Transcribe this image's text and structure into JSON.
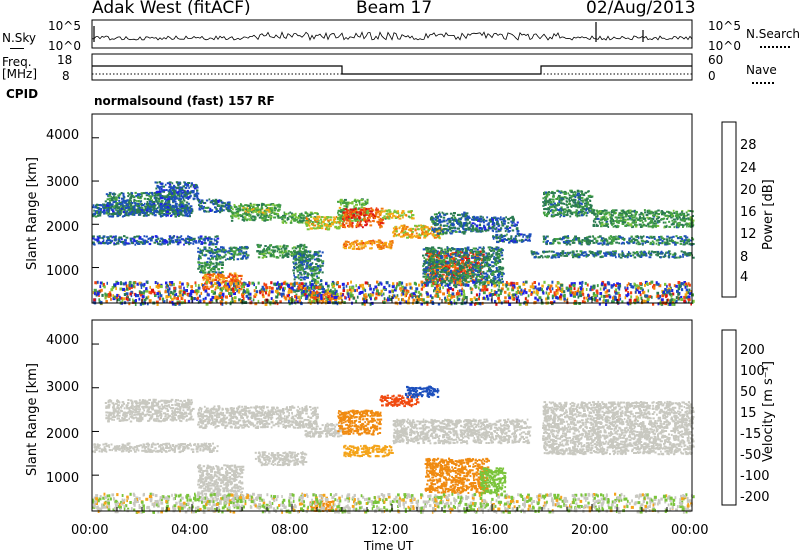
{
  "header": {
    "radar": "Adak West (fitACF)",
    "beam": "Beam 17",
    "date": "02/Aug/2013"
  },
  "noise_panel": {
    "left_label": "N.Sky",
    "right_label": "N.Search",
    "left_ticks": [
      "10^5",
      "10^0"
    ],
    "right_ticks": [
      "10^5",
      "10^0"
    ]
  },
  "freq_panel": {
    "left_label_1": "Freq.",
    "left_label_2": "[MHz]",
    "right_label": "Nave",
    "left_ticks": [
      "18",
      "8"
    ],
    "right_ticks": [
      "60",
      "0"
    ],
    "cpid_label": "CPID",
    "cpid_text": "normalsound (fast) 157 RF"
  },
  "colors": {
    "power": [
      "#1f1fe6",
      "#1c4fbd",
      "#2a7a52",
      "#43a043",
      "#7ac43a",
      "#f4aa14",
      "#f07a0c",
      "#f04010",
      "#dd1010"
    ],
    "velocity": [
      "#e01010",
      "#f04a10",
      "#f08a10",
      "#f4a41a",
      "#c8c8c0",
      "#c8c8c0",
      "#7ac43a",
      "#2a8a4a",
      "#1c4fbd",
      "#1a2adb"
    ]
  },
  "chart_data": [
    {
      "type": "heatmap",
      "panel": "power",
      "ylabel": "Slant Range [km]",
      "ylim": [
        180,
        4550
      ],
      "y_ticks": [
        "4000",
        "3000",
        "2000",
        "1000"
      ],
      "colorbar": {
        "label": "Power [dB]",
        "range": [
          0,
          32
        ],
        "ticks": [
          "28",
          "24",
          "20",
          "16",
          "12",
          "8",
          "4"
        ]
      },
      "regions": [
        {
          "x": [
            0.5,
            3.8
          ],
          "y": [
            2250,
            2750
          ],
          "value": 9
        },
        {
          "x": [
            0.0,
            5.0
          ],
          "y": [
            1550,
            1750
          ],
          "value": 6
        },
        {
          "x": [
            0.0,
            4.0
          ],
          "y": [
            2200,
            2500
          ],
          "value": 7
        },
        {
          "x": [
            2.5,
            4.2
          ],
          "y": [
            2600,
            3000
          ],
          "value": 6
        },
        {
          "x": [
            4.2,
            5.5
          ],
          "y": [
            2300,
            2600
          ],
          "value": 7
        },
        {
          "x": [
            5.5,
            7.5
          ],
          "y": [
            2100,
            2500
          ],
          "value": 12
        },
        {
          "x": [
            6.0,
            7.2
          ],
          "y": [
            2250,
            2400
          ],
          "value": 16
        },
        {
          "x": [
            7.5,
            9.0
          ],
          "y": [
            2050,
            2300
          ],
          "value": 13
        },
        {
          "x": [
            8.5,
            10.0
          ],
          "y": [
            1900,
            2200
          ],
          "value": 18
        },
        {
          "x": [
            9.8,
            11.0
          ],
          "y": [
            2100,
            2600
          ],
          "value": 14
        },
        {
          "x": [
            10.0,
            11.6
          ],
          "y": [
            1950,
            2400
          ],
          "value": 26
        },
        {
          "x": [
            11.5,
            12.8
          ],
          "y": [
            2150,
            2350
          ],
          "value": 18
        },
        {
          "x": [
            10.0,
            12.0
          ],
          "y": [
            1450,
            1650
          ],
          "value": 22
        },
        {
          "x": [
            12.0,
            14.0
          ],
          "y": [
            1700,
            2000
          ],
          "value": 20
        },
        {
          "x": [
            13.5,
            15.0
          ],
          "y": [
            1800,
            2300
          ],
          "value": 8
        },
        {
          "x": [
            15.0,
            17.0
          ],
          "y": [
            1850,
            2200
          ],
          "value": 7
        },
        {
          "x": [
            16.0,
            17.5
          ],
          "y": [
            1600,
            1800
          ],
          "value": 7
        },
        {
          "x": [
            18.0,
            20.0
          ],
          "y": [
            2200,
            2800
          ],
          "value": 10
        },
        {
          "x": [
            20.0,
            24.0
          ],
          "y": [
            1950,
            2350
          ],
          "value": 11
        },
        {
          "x": [
            18.0,
            24.0
          ],
          "y": [
            1550,
            1750
          ],
          "value": 9
        },
        {
          "x": [
            17.5,
            24.0
          ],
          "y": [
            1250,
            1400
          ],
          "value": 8
        },
        {
          "x": [
            4.2,
            6.2
          ],
          "y": [
            1200,
            1500
          ],
          "value": 9
        },
        {
          "x": [
            6.5,
            8.5
          ],
          "y": [
            1250,
            1550
          ],
          "value": 11
        },
        {
          "x": [
            4.4,
            6.0
          ],
          "y": [
            500,
            900
          ],
          "value": 24
        },
        {
          "x": [
            4.2,
            5.2
          ],
          "y": [
            900,
            1150
          ],
          "value": 10
        },
        {
          "x": [
            8.0,
            9.2
          ],
          "y": [
            400,
            1400
          ],
          "value": 9
        },
        {
          "x": [
            8.6,
            9.8
          ],
          "y": [
            200,
            450
          ],
          "value": 24
        },
        {
          "x": [
            13.3,
            15.6
          ],
          "y": [
            700,
            1400
          ],
          "value": 26
        },
        {
          "x": [
            13.2,
            16.4
          ],
          "y": [
            600,
            1500
          ],
          "value": 9
        },
        {
          "x": [
            0.0,
            24.0
          ],
          "y": [
            180,
            700
          ],
          "value": 14
        }
      ]
    },
    {
      "type": "heatmap",
      "panel": "velocity",
      "ylabel": "Slant Range [km]",
      "xlabel": "Time UT",
      "x_ticks": [
        "00:00",
        "04:00",
        "08:00",
        "12:00",
        "16:00",
        "20:00",
        "00:00"
      ],
      "xlim": [
        0,
        24
      ],
      "ylim": [
        180,
        4550
      ],
      "y_ticks": [
        "4000",
        "3000",
        "2000",
        "1000"
      ],
      "colorbar": {
        "label": "Velocity [m s⁻¹]",
        "boundaries": [
          -250,
          -200,
          -100,
          -50,
          -15,
          0,
          15,
          50,
          100,
          200,
          250
        ],
        "ticks": [
          "200",
          "100",
          "50",
          "15",
          "-15",
          "-50",
          "-100",
          "-200"
        ]
      },
      "regions": [
        {
          "x": [
            0.5,
            4.0
          ],
          "y": [
            2250,
            2750
          ],
          "value": -5
        },
        {
          "x": [
            0.0,
            5.0
          ],
          "y": [
            1550,
            1750
          ],
          "value": 5
        },
        {
          "x": [
            4.2,
            9.0
          ],
          "y": [
            2100,
            2600
          ],
          "value": 0
        },
        {
          "x": [
            8.5,
            10.0
          ],
          "y": [
            1900,
            2200
          ],
          "value": -5
        },
        {
          "x": [
            9.8,
            11.5
          ],
          "y": [
            1950,
            2500
          ],
          "value": -60
        },
        {
          "x": [
            10.0,
            12.0
          ],
          "y": [
            1450,
            1700
          ],
          "value": -40
        },
        {
          "x": [
            11.5,
            13.0
          ],
          "y": [
            2600,
            2850
          ],
          "value": -150
        },
        {
          "x": [
            12.5,
            13.8
          ],
          "y": [
            2800,
            3050
          ],
          "value": 150
        },
        {
          "x": [
            12.0,
            17.5
          ],
          "y": [
            1750,
            2300
          ],
          "value": 5
        },
        {
          "x": [
            18.0,
            24.0
          ],
          "y": [
            1500,
            2700
          ],
          "value": 3
        },
        {
          "x": [
            4.2,
            6.0
          ],
          "y": [
            400,
            1250
          ],
          "value": 5
        },
        {
          "x": [
            6.5,
            8.5
          ],
          "y": [
            1250,
            1550
          ],
          "value": -5
        },
        {
          "x": [
            8.7,
            9.6
          ],
          "y": [
            200,
            450
          ],
          "value": -60
        },
        {
          "x": [
            13.3,
            15.8
          ],
          "y": [
            600,
            1400
          ],
          "value": -60
        },
        {
          "x": [
            15.5,
            16.5
          ],
          "y": [
            600,
            1200
          ],
          "value": 30
        },
        {
          "x": [
            0.0,
            24.0
          ],
          "y": [
            180,
            600
          ],
          "value": 5
        }
      ]
    }
  ]
}
